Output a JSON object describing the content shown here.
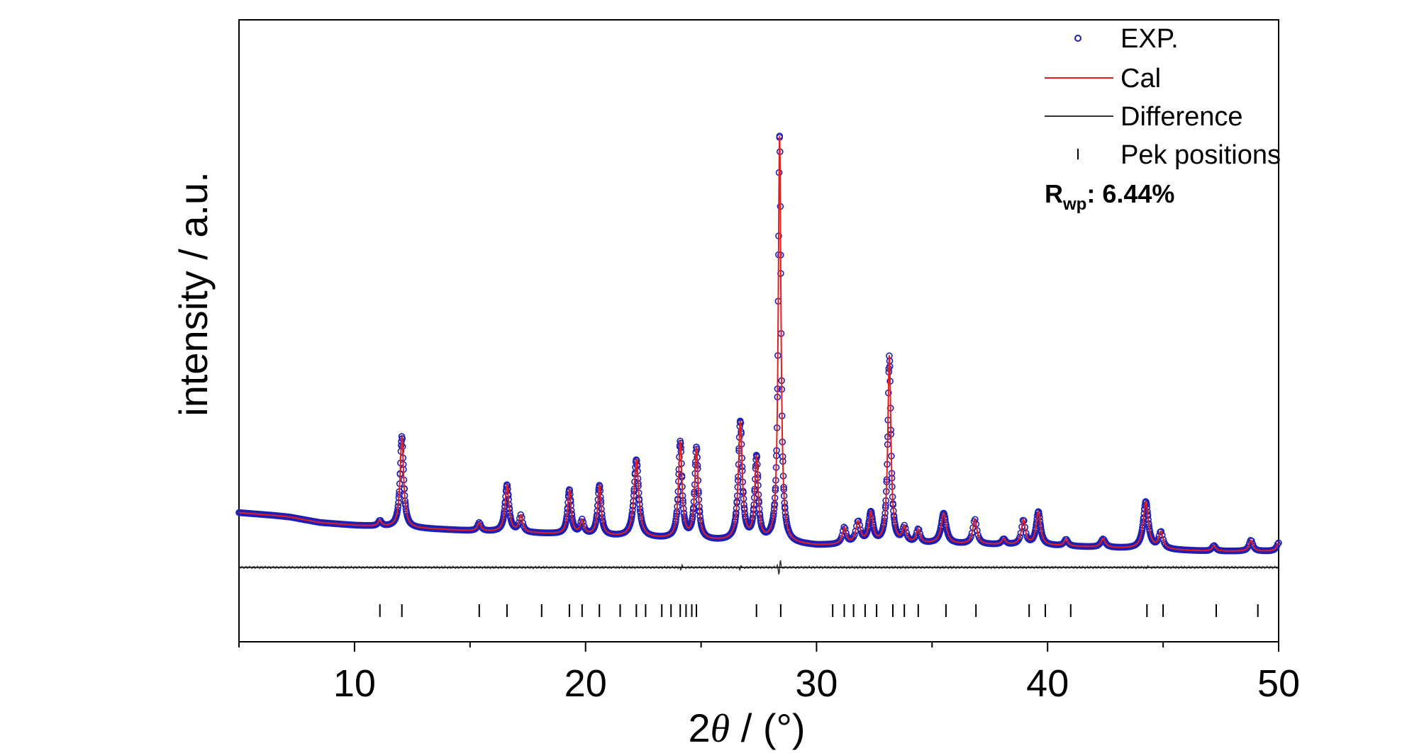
{
  "chart_data": {
    "type": "line",
    "xlabel_prefix": "2",
    "xlabel_symbol": "θ",
    "xlabel_suffix": " / (°)",
    "ylabel": "intensity / a.u.",
    "xlim": [
      5,
      50
    ],
    "xticks": [
      10,
      20,
      30,
      40,
      50
    ],
    "grid": false,
    "legend_position": "top-right",
    "legend": [
      {
        "label": "EXP.",
        "marker": "circle",
        "color": "#1f1fb4"
      },
      {
        "label": "Cal",
        "marker": "line",
        "color": "#e02020"
      },
      {
        "label": "Difference",
        "marker": "line",
        "color": "#333333"
      },
      {
        "label": "Pek positions",
        "marker": "tick",
        "color": "#000000"
      }
    ],
    "rwp": {
      "symbol": "R",
      "subscript": "wp",
      "value": ": 6.44%"
    },
    "background_points": [
      [
        5,
        0.085
      ],
      [
        6.5,
        0.08
      ],
      [
        7.2,
        0.077
      ],
      [
        8.5,
        0.067
      ],
      [
        10,
        0.062
      ],
      [
        12,
        0.058
      ],
      [
        15,
        0.052
      ],
      [
        20,
        0.044
      ],
      [
        25,
        0.034
      ],
      [
        28,
        0.03
      ],
      [
        30,
        0.025
      ],
      [
        35,
        0.028
      ],
      [
        40,
        0.025
      ],
      [
        45,
        0.018
      ],
      [
        47,
        0.015
      ],
      [
        50,
        0.015
      ]
    ],
    "peaks": [
      {
        "x": 11.1,
        "h": 0.01,
        "w": 0.09
      },
      {
        "x": 12.05,
        "h": 0.165,
        "w": 0.09
      },
      {
        "x": 15.4,
        "h": 0.015,
        "w": 0.09
      },
      {
        "x": 16.6,
        "h": 0.085,
        "w": 0.1
      },
      {
        "x": 17.2,
        "h": 0.03,
        "w": 0.09
      },
      {
        "x": 19.3,
        "h": 0.08,
        "w": 0.09
      },
      {
        "x": 19.85,
        "h": 0.025,
        "w": 0.09
      },
      {
        "x": 20.6,
        "h": 0.09,
        "w": 0.09
      },
      {
        "x": 22.2,
        "h": 0.14,
        "w": 0.12
      },
      {
        "x": 24.1,
        "h": 0.175,
        "w": 0.09
      },
      {
        "x": 24.8,
        "h": 0.165,
        "w": 0.09
      },
      {
        "x": 26.7,
        "h": 0.215,
        "w": 0.1
      },
      {
        "x": 27.4,
        "h": 0.15,
        "w": 0.09
      },
      {
        "x": 28.4,
        "h": 0.735,
        "w": 0.07
      },
      {
        "x": 31.2,
        "h": 0.03,
        "w": 0.1
      },
      {
        "x": 31.8,
        "h": 0.04,
        "w": 0.12
      },
      {
        "x": 32.35,
        "h": 0.055,
        "w": 0.11
      },
      {
        "x": 33.15,
        "h": 0.34,
        "w": 0.08
      },
      {
        "x": 33.8,
        "h": 0.028,
        "w": 0.1
      },
      {
        "x": 34.4,
        "h": 0.025,
        "w": 0.1
      },
      {
        "x": 35.5,
        "h": 0.055,
        "w": 0.13
      },
      {
        "x": 36.85,
        "h": 0.045,
        "w": 0.11
      },
      {
        "x": 38.1,
        "h": 0.01,
        "w": 0.1
      },
      {
        "x": 38.95,
        "h": 0.045,
        "w": 0.1
      },
      {
        "x": 39.6,
        "h": 0.06,
        "w": 0.11
      },
      {
        "x": 40.8,
        "h": 0.012,
        "w": 0.1
      },
      {
        "x": 42.4,
        "h": 0.015,
        "w": 0.12
      },
      {
        "x": 44.25,
        "h": 0.085,
        "w": 0.13
      },
      {
        "x": 44.9,
        "h": 0.03,
        "w": 0.11
      },
      {
        "x": 47.2,
        "h": 0.01,
        "w": 0.1
      },
      {
        "x": 48.8,
        "h": 0.02,
        "w": 0.1
      },
      {
        "x": 50.0,
        "h": 0.015,
        "w": 0.1
      }
    ],
    "peak_positions": [
      11.1,
      12.05,
      15.4,
      16.6,
      18.1,
      19.3,
      19.85,
      20.6,
      21.5,
      22.2,
      22.6,
      23.3,
      23.7,
      24.1,
      24.35,
      24.6,
      24.8,
      27.4,
      28.45,
      30.7,
      31.2,
      31.6,
      32.1,
      32.6,
      33.3,
      33.8,
      34.4,
      35.6,
      36.9,
      39.2,
      39.9,
      41.0,
      44.3,
      45.0,
      47.3,
      49.1
    ],
    "difference_spikes": [
      {
        "x": 24.15,
        "amp": 0.006
      },
      {
        "x": 26.7,
        "amp": 0.005
      },
      {
        "x": 28.4,
        "amp": 0.016
      },
      {
        "x": 44.3,
        "amp": 0.004
      }
    ]
  }
}
